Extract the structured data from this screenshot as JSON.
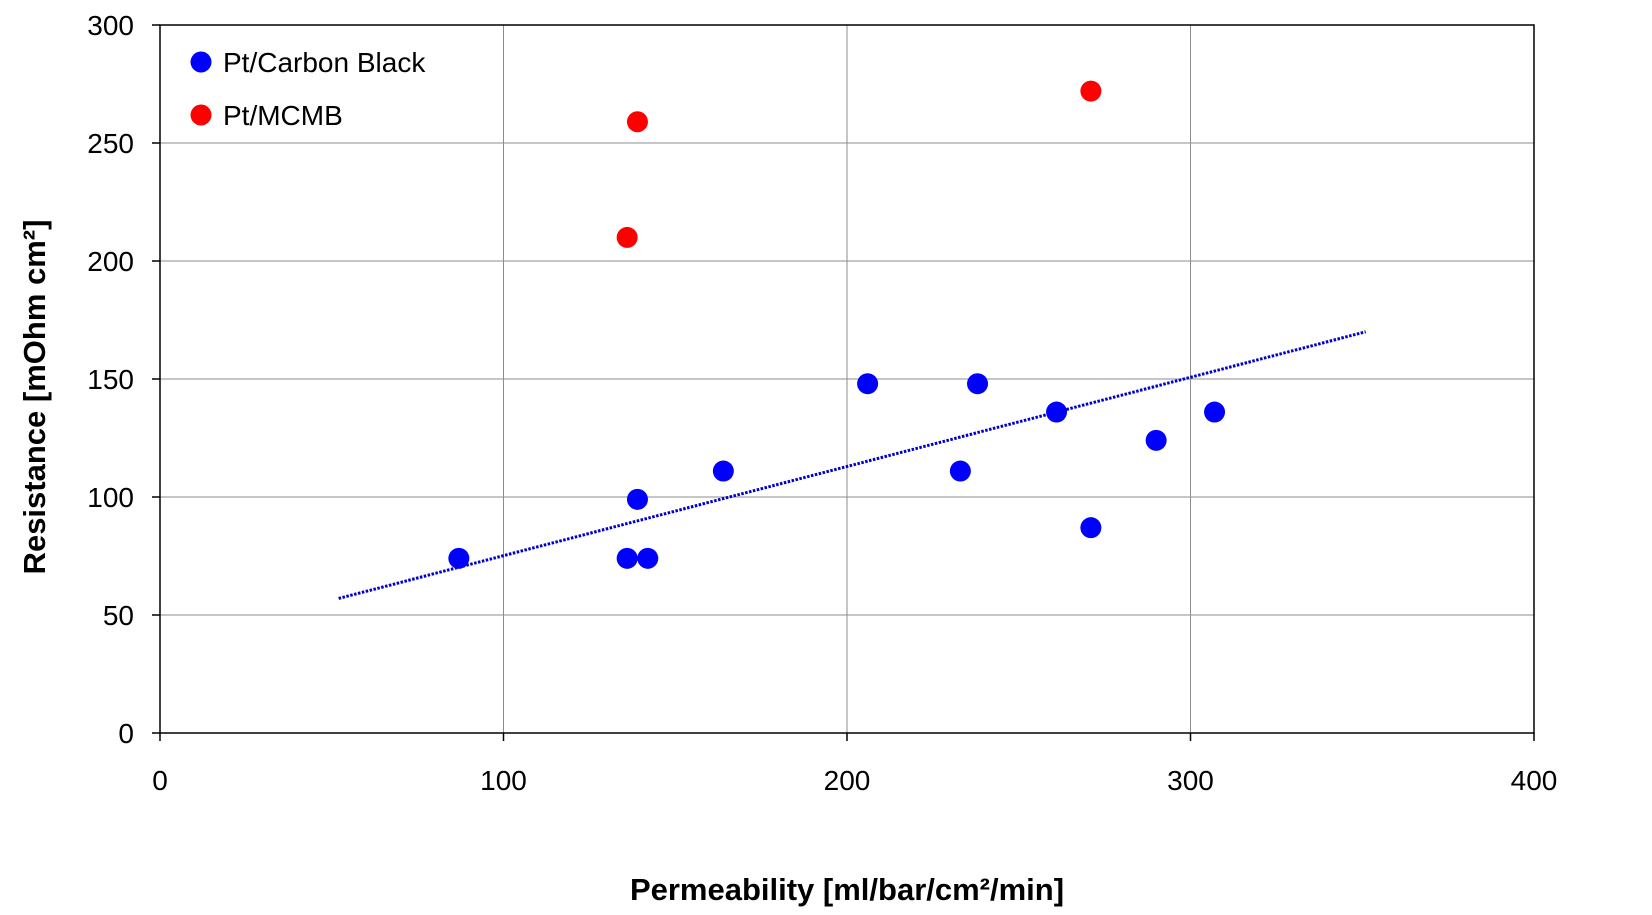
{
  "chart_data": {
    "type": "scatter",
    "xlabel": "Permeability [ml/bar/cm²/min]",
    "ylabel": "Resistance [mOhm cm²]",
    "xlim": [
      0,
      400
    ],
    "ylim": [
      0,
      300
    ],
    "x_ticks": [
      0,
      100,
      200,
      300,
      400
    ],
    "y_ticks": [
      0,
      50,
      100,
      150,
      200,
      250,
      300
    ],
    "x_tick_labels": [
      "0",
      "100",
      "200",
      "300",
      "400"
    ],
    "y_tick_labels": [
      "0",
      "50",
      "100",
      "150",
      "200",
      "250",
      "300"
    ],
    "grid": true,
    "legend_position": "top-left",
    "series": [
      {
        "name": "Pt/Carbon Black",
        "color": "#0000ff",
        "points": [
          {
            "x": 87,
            "y": 74
          },
          {
            "x": 136,
            "y": 74
          },
          {
            "x": 142,
            "y": 74
          },
          {
            "x": 139,
            "y": 99
          },
          {
            "x": 164,
            "y": 111
          },
          {
            "x": 206,
            "y": 148
          },
          {
            "x": 233,
            "y": 111
          },
          {
            "x": 238,
            "y": 148
          },
          {
            "x": 261,
            "y": 136
          },
          {
            "x": 271,
            "y": 87
          },
          {
            "x": 290,
            "y": 124
          },
          {
            "x": 307,
            "y": 136
          }
        ]
      },
      {
        "name": "Pt/MCMB",
        "color": "#ff0000",
        "points": [
          {
            "x": 136,
            "y": 210
          },
          {
            "x": 139,
            "y": 259
          },
          {
            "x": 271,
            "y": 272
          }
        ]
      }
    ],
    "trendline": {
      "color": "#0000cc",
      "style": "dotted",
      "points": [
        {
          "x": 52,
          "y": 57
        },
        {
          "x": 351,
          "y": 170
        }
      ]
    }
  }
}
